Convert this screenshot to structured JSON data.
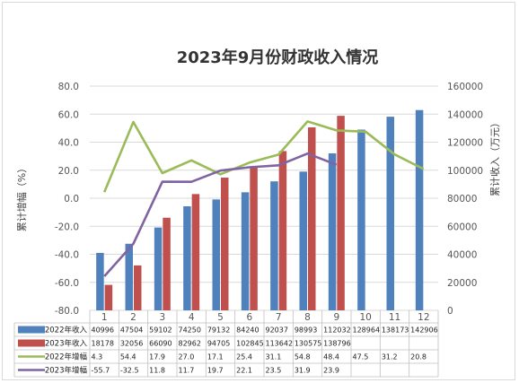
{
  "chart_data": {
    "type": "bar",
    "title": "2023年9月份财政收入情况",
    "categories": [
      "1",
      "2",
      "3",
      "4",
      "5",
      "6",
      "7",
      "8",
      "9",
      "10",
      "11",
      "12"
    ],
    "left_axis": {
      "label": "累计增幅（%）",
      "ticks": [
        "80.0",
        "60.0",
        "40.0",
        "20.0",
        "0.0",
        "-20.0",
        "-40.0",
        "-60.0",
        "-80.0"
      ],
      "range": [
        -80,
        80
      ]
    },
    "right_axis": {
      "label": "累计收入（万元）",
      "ticks": [
        "160000",
        "140000",
        "120000",
        "100000",
        "80000",
        "60000",
        "40000",
        "20000",
        "0"
      ],
      "range": [
        0,
        160000
      ]
    },
    "series": [
      {
        "name": "2022年收入",
        "type": "bar",
        "axis": "right",
        "color": "#4f81bd",
        "values": [
          40996,
          47504,
          59102,
          74250,
          79132,
          84240,
          92037,
          98993,
          112032,
          128964,
          138173,
          142906
        ],
        "labels": [
          "40996",
          "47504",
          "59102",
          "74250",
          "79132",
          "84240",
          "92037",
          "98993",
          "112032",
          "128964",
          "138173",
          "142906"
        ]
      },
      {
        "name": "2023年收入",
        "type": "bar",
        "axis": "right",
        "color": "#c0504d",
        "values": [
          18178,
          32056,
          66090,
          82962,
          94705,
          102845,
          113642,
          130575,
          138796,
          null,
          null,
          null
        ],
        "labels": [
          "18178",
          "32056",
          "66090",
          "82962",
          "94705",
          "102845",
          "113642",
          "130575",
          "138796",
          "",
          "",
          ""
        ]
      },
      {
        "name": "2022年增幅",
        "type": "line",
        "axis": "left",
        "color": "#9bbb59",
        "values": [
          4.3,
          54.4,
          17.9,
          27.0,
          17.1,
          25.4,
          31.1,
          54.8,
          48.4,
          47.5,
          31.2,
          20.8
        ],
        "labels": [
          "4.3",
          "54.4",
          "17.9",
          "27.0",
          "17.1",
          "25.4",
          "31.1",
          "54.8",
          "48.4",
          "47.5",
          "31.2",
          "20.8"
        ]
      },
      {
        "name": "2023年增幅",
        "type": "line",
        "axis": "left",
        "color": "#8064a2",
        "values": [
          -55.7,
          -32.5,
          11.8,
          11.7,
          19.7,
          22.1,
          23.5,
          31.9,
          23.9,
          null,
          null,
          null
        ],
        "labels": [
          "-55.7",
          "-32.5",
          "11.8",
          "11.7",
          "19.7",
          "22.1",
          "23.5",
          "31.9",
          "23.9",
          "",
          "",
          ""
        ]
      }
    ]
  }
}
